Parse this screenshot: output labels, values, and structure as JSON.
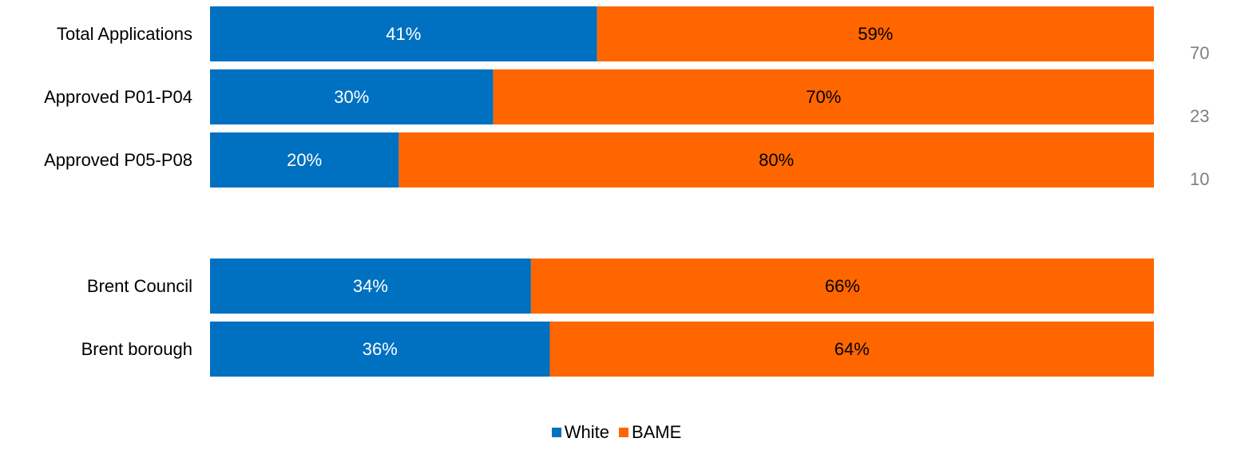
{
  "chart_data": {
    "type": "bar",
    "orientation": "horizontal",
    "stacked": "percent",
    "categories": [
      "Total Applications",
      "Approved P01-P04",
      "Approved P05-P08",
      "Brent Council",
      "Brent borough"
    ],
    "groups": [
      [
        "Total Applications",
        "Approved P01-P04",
        "Approved P05-P08"
      ],
      [
        "Brent Council",
        "Brent borough"
      ]
    ],
    "series": [
      {
        "name": "White",
        "color": "#0070C0",
        "label_color": "#ffffff",
        "values": [
          41,
          30,
          20,
          34,
          36
        ],
        "labels": [
          "41%",
          "30%",
          "20%",
          "34%",
          "36%"
        ]
      },
      {
        "name": "BAME",
        "color": "#FF6600",
        "label_color": "#000000",
        "values": [
          59,
          70,
          80,
          66,
          64
        ],
        "labels": [
          "59%",
          "70%",
          "80%",
          "66%",
          "64%"
        ]
      }
    ],
    "side_values": [
      {
        "category": "Total Applications",
        "value": "70"
      },
      {
        "category": "Approved P01-P04",
        "value": "23"
      },
      {
        "category": "Approved P05-P08",
        "value": "10"
      }
    ],
    "xlim": [
      0,
      100
    ],
    "grid": false,
    "legend_position": "bottom-center"
  },
  "legend": [
    {
      "name": "White",
      "color": "#0070C0"
    },
    {
      "name": "BAME",
      "color": "#FF6600"
    }
  ]
}
